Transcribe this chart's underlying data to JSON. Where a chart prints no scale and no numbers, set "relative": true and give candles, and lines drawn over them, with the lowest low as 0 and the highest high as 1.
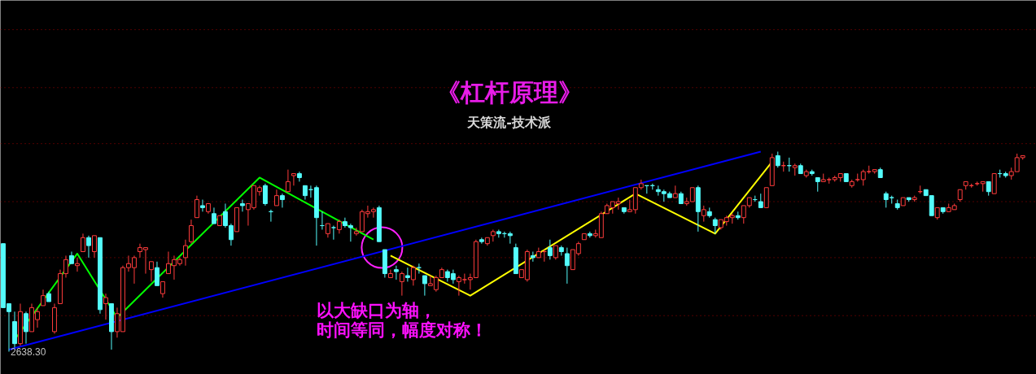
{
  "chart_data": {
    "type": "candlestick",
    "title": "《杠杆原理》",
    "subtitle": "天策流-技术派",
    "relative": true,
    "ref_lines": [
      {
        "axis": "y",
        "value": 0.18,
        "color": "#a00000",
        "line_style": "dotted"
      },
      {
        "axis": "y",
        "value": 0.47,
        "color": "#a00000",
        "line_style": "dotted"
      },
      {
        "axis": "y",
        "value": 0.75,
        "color": "#a00000",
        "line_style": "dotted"
      },
      {
        "axis": "y",
        "value": 1.04,
        "color": "#a00000",
        "line_style": "dotted"
      },
      {
        "axis": "y",
        "value": 1.32,
        "color": "#a00000",
        "line_style": "dotted"
      },
      {
        "axis": "y",
        "value": 1.61,
        "color": "#a00000",
        "line_style": "dotted"
      }
    ],
    "annotations": [
      "2638.30",
      "以大缺口为轴，",
      "时间等同，幅度对称！"
    ],
    "categories": [
      null,
      null,
      null,
      null,
      null,
      null,
      null,
      null,
      null,
      null,
      null,
      null,
      null,
      null,
      null,
      null,
      null,
      null,
      null,
      null,
      null,
      null,
      null,
      null,
      null,
      null,
      null,
      null,
      null,
      null,
      null,
      null,
      null,
      null,
      null,
      null,
      null,
      null,
      null,
      null,
      null,
      null,
      null,
      null,
      null,
      null,
      null,
      null,
      null,
      null,
      null,
      null,
      null,
      null,
      null,
      null,
      null,
      null,
      null,
      null,
      null,
      null,
      null,
      null,
      null,
      null,
      null,
      null,
      null,
      null,
      null,
      null,
      null,
      null,
      null,
      null,
      null,
      null,
      null,
      null,
      null,
      null,
      null,
      null,
      null,
      null,
      null,
      null,
      null,
      null,
      null,
      null,
      null,
      null,
      null,
      null,
      null,
      null,
      null,
      null,
      null,
      null,
      null,
      null,
      null,
      null,
      null,
      null,
      null,
      null,
      null,
      null,
      null,
      null,
      null,
      null,
      null,
      null,
      null,
      null,
      null,
      null,
      null,
      null,
      null,
      null,
      null,
      null,
      null,
      null,
      null,
      null,
      null,
      null,
      null,
      null,
      null,
      null,
      null,
      null,
      null,
      null,
      null,
      null,
      null,
      null,
      null,
      null,
      null,
      null,
      null,
      null,
      null,
      null,
      null,
      null,
      null,
      null,
      null,
      null,
      null,
      null,
      null,
      null,
      null,
      null,
      null,
      null,
      null,
      null,
      null,
      null,
      null,
      null,
      null,
      null,
      null,
      null,
      null,
      null
    ],
    "ohlc": [
      [
        0.54,
        0.54,
        0.22,
        0.22
      ],
      [
        0.24,
        0.24,
        0,
        0.2
      ],
      [
        0.15,
        0.2,
        0.02,
        0.04
      ],
      [
        0.04,
        0.24,
        0.03,
        0.2
      ],
      [
        0.19,
        0.2,
        0.04,
        0.1
      ],
      [
        0.1,
        0.24,
        0.1,
        0.22
      ],
      [
        0.16,
        0.22,
        0.12,
        0.2
      ],
      [
        0.23,
        0.31,
        0.23,
        0.28
      ],
      [
        0.29,
        0.3,
        0.25,
        0.25
      ],
      [
        0.1,
        0.24,
        0.09,
        0.22
      ],
      [
        0.24,
        0.41,
        0.24,
        0.39
      ],
      [
        0.39,
        0.48,
        0.37,
        0.46
      ],
      [
        0.48,
        0.5,
        0.44,
        0.44
      ],
      [
        0.43,
        0.47,
        0.4,
        0.44
      ],
      [
        0.5,
        0.59,
        0.5,
        0.57
      ],
      [
        0.57,
        0.58,
        0.47,
        0.53
      ],
      [
        0.5,
        0.58,
        0.47,
        0.58
      ],
      [
        0.57,
        0.57,
        0.19,
        0.21
      ],
      [
        0.24,
        0.29,
        0.16,
        0.27
      ],
      [
        0.24,
        0.24,
        0.01,
        0.1
      ],
      [
        0.1,
        0.22,
        0.07,
        0.19
      ],
      [
        0.1,
        0.43,
        0.1,
        0.42
      ],
      [
        0.42,
        0.48,
        0.4,
        0.44
      ],
      [
        0.42,
        0.48,
        0.34,
        0.47
      ],
      [
        0.5,
        0.54,
        0.47,
        0.52
      ],
      [
        0.51,
        0.52,
        0.39,
        0.52
      ],
      [
        0.41,
        0.45,
        0.35,
        0.45
      ],
      [
        0.42,
        0.45,
        0.33,
        0.33
      ],
      [
        0.29,
        0.35,
        0.27,
        0.35
      ],
      [
        0.39,
        0.5,
        0.39,
        0.44
      ],
      [
        0.43,
        0.48,
        0.36,
        0.46
      ],
      [
        0.44,
        0.47,
        0.43,
        0.46
      ],
      [
        0.47,
        0.56,
        0.43,
        0.53
      ],
      [
        0.55,
        0.66,
        0.54,
        0.63
      ],
      [
        0.67,
        0.78,
        0.67,
        0.76
      ],
      [
        0.73,
        0.76,
        0.7,
        0.72
      ],
      [
        0.7,
        0.74,
        0.69,
        0.74
      ],
      [
        0.69,
        0.72,
        0.64,
        0.64
      ],
      [
        0.63,
        0.68,
        0.63,
        0.68
      ],
      [
        0.7,
        0.74,
        0.62,
        0.63
      ],
      [
        0.63,
        0.64,
        0.53,
        0.56
      ],
      [
        0.6,
        0.72,
        0.6,
        0.72
      ],
      [
        0.74,
        0.76,
        0.7,
        0.73
      ],
      [
        0.71,
        0.74,
        0.63,
        0.74
      ],
      [
        0.72,
        0.83,
        0.71,
        0.83
      ],
      [
        0.8,
        0.83,
        0.78,
        0.82
      ],
      [
        0.83,
        0.84,
        0.73,
        0.74
      ],
      [
        0.7,
        0.71,
        0.65,
        0.7
      ],
      [
        0.73,
        0.81,
        0.73,
        0.78
      ],
      [
        0.78,
        0.79,
        0.72,
        0.76
      ],
      [
        0.8,
        0.91,
        0.8,
        0.85
      ],
      [
        0.88,
        0.89,
        0.83,
        0.89
      ],
      [
        0.89,
        0.9,
        0.85,
        0.87
      ],
      [
        0.83,
        0.83,
        0.76,
        0.78
      ],
      [
        0.81,
        0.83,
        0.77,
        0.81
      ],
      [
        0.82,
        0.83,
        0.53,
        0.67
      ],
      [
        0.63,
        0.7,
        0.61,
        0.63
      ],
      [
        0.59,
        0.64,
        0.57,
        0.64
      ],
      [
        0.62,
        0.63,
        0.56,
        0.62
      ],
      [
        0.61,
        0.66,
        0.59,
        0.65
      ],
      [
        0.65,
        0.67,
        0.62,
        0.63
      ],
      [
        0.63,
        0.64,
        0.55,
        0.62
      ],
      [
        0.59,
        0.62,
        0.58,
        0.6
      ],
      [
        0.6,
        0.71,
        0.6,
        0.7
      ],
      [
        0.69,
        0.73,
        0.67,
        0.7
      ],
      [
        0.7,
        0.72,
        0.67,
        0.71
      ],
      [
        0.72,
        0.73,
        0.55,
        0.55
      ],
      [
        0.51,
        0.51,
        0.37,
        0.39
      ],
      [
        0.37,
        0.41,
        0.37,
        0.39
      ],
      [
        0.41,
        0.43,
        0.36,
        0.4
      ],
      [
        0.35,
        0.4,
        0.28,
        0.39
      ],
      [
        0.38,
        0.42,
        0.35,
        0.37
      ],
      [
        0.36,
        0.43,
        0.33,
        0.42
      ],
      [
        0.42,
        0.44,
        0.39,
        0.42
      ],
      [
        0.38,
        0.38,
        0.28,
        0.34
      ],
      [
        0.33,
        0.38,
        0.33,
        0.34
      ],
      [
        0.31,
        0.38,
        0.3,
        0.37
      ],
      [
        0.37,
        0.42,
        0.37,
        0.41
      ],
      [
        0.4,
        0.41,
        0.35,
        0.37
      ],
      [
        0.39,
        0.41,
        0.34,
        0.36
      ],
      [
        0.35,
        0.38,
        0.28,
        0.37
      ],
      [
        0.36,
        0.39,
        0.34,
        0.36
      ],
      [
        0.36,
        0.39,
        0.31,
        0.37
      ],
      [
        0.37,
        0.56,
        0.37,
        0.55
      ],
      [
        0.56,
        0.57,
        0.54,
        0.55
      ],
      [
        0.54,
        0.57,
        0.53,
        0.57
      ],
      [
        0.58,
        0.61,
        0.55,
        0.6
      ],
      [
        0.6,
        0.61,
        0.57,
        0.59
      ],
      [
        0.59,
        0.6,
        0.57,
        0.59
      ],
      [
        0.59,
        0.6,
        0.54,
        0.58
      ],
      [
        0.52,
        0.54,
        0.39,
        0.39
      ],
      [
        0.37,
        0.41,
        0.37,
        0.41
      ],
      [
        0.36,
        0.51,
        0.35,
        0.5
      ],
      [
        0.48,
        0.5,
        0.45,
        0.47
      ],
      [
        0.47,
        0.52,
        0.47,
        0.5
      ],
      [
        0.5,
        0.51,
        0.45,
        0.5
      ],
      [
        0.52,
        0.56,
        0.46,
        0.48
      ],
      [
        0.47,
        0.53,
        0.46,
        0.53
      ],
      [
        0.52,
        0.53,
        0.48,
        0.5
      ],
      [
        0.49,
        0.52,
        0.34,
        0.43
      ],
      [
        0.41,
        0.51,
        0.41,
        0.51
      ],
      [
        0.49,
        0.55,
        0.48,
        0.54
      ],
      [
        0.56,
        0.59,
        0.56,
        0.59
      ],
      [
        0.59,
        0.6,
        0.57,
        0.58
      ],
      [
        0.58,
        0.61,
        0.57,
        0.59
      ],
      [
        0.57,
        0.7,
        0.57,
        0.69
      ],
      [
        0.69,
        0.74,
        0.69,
        0.73
      ],
      [
        0.72,
        0.75,
        0.69,
        0.75
      ],
      [
        0.74,
        0.77,
        0.71,
        0.75
      ],
      [
        0.72,
        0.72,
        0.69,
        0.7
      ],
      [
        0.7,
        0.76,
        0.7,
        0.71
      ],
      [
        0.71,
        0.82,
        0.69,
        0.82
      ],
      [
        0.82,
        0.86,
        0.81,
        0.84
      ],
      [
        0.83,
        0.83,
        0.79,
        0.83
      ],
      [
        0.83,
        0.84,
        0.81,
        0.83
      ],
      [
        0.81,
        0.83,
        0.78,
        0.8
      ],
      [
        0.8,
        0.81,
        0.75,
        0.79
      ],
      [
        0.79,
        0.8,
        0.77,
        0.77
      ],
      [
        0.77,
        0.83,
        0.77,
        0.79
      ],
      [
        0.79,
        0.8,
        0.74,
        0.74
      ],
      [
        0.74,
        0.77,
        0.73,
        0.75
      ],
      [
        0.75,
        0.82,
        0.75,
        0.82
      ],
      [
        0.82,
        0.83,
        0.6,
        0.7
      ],
      [
        0.68,
        0.73,
        0.65,
        0.71
      ],
      [
        0.7,
        0.72,
        0.67,
        0.68
      ],
      [
        0.66,
        0.67,
        0.59,
        0.63
      ],
      [
        0.62,
        0.66,
        0.61,
        0.66
      ],
      [
        0.65,
        0.68,
        0.63,
        0.67
      ],
      [
        0.67,
        0.69,
        0.64,
        0.68
      ],
      [
        0.68,
        0.7,
        0.66,
        0.67
      ],
      [
        0.67,
        0.73,
        0.64,
        0.73
      ],
      [
        0.73,
        0.77,
        0.72,
        0.77
      ],
      [
        0.76,
        0.78,
        0.75,
        0.76
      ],
      [
        0.75,
        0.79,
        0.72,
        0.72
      ],
      [
        0.72,
        0.82,
        0.72,
        0.82
      ],
      [
        0.83,
        0.99,
        0.83,
        0.97
      ],
      [
        0.98,
        1,
        0.92,
        0.93
      ],
      [
        0.93,
        0.95,
        0.9,
        0.93
      ],
      [
        0.93,
        0.97,
        0.9,
        0.93
      ],
      [
        0.92,
        0.94,
        0.88,
        0.93
      ],
      [
        0.93,
        0.94,
        0.89,
        0.89
      ],
      [
        0.88,
        0.91,
        0.87,
        0.9
      ],
      [
        0.9,
        0.91,
        0.88,
        0.89
      ],
      [
        0.87,
        0.87,
        0.8,
        0.85
      ],
      [
        0.85,
        0.89,
        0.85,
        0.86
      ],
      [
        0.86,
        0.87,
        0.84,
        0.86
      ],
      [
        0.86,
        0.88,
        0.85,
        0.87
      ],
      [
        0.87,
        0.89,
        0.85,
        0.89
      ],
      [
        0.89,
        0.89,
        0.85,
        0.85
      ],
      [
        0.83,
        0.86,
        0.82,
        0.85
      ],
      [
        0.86,
        0.89,
        0.85,
        0.86
      ],
      [
        0.86,
        0.91,
        0.83,
        0.9
      ],
      [
        0.9,
        0.93,
        0.89,
        0.9
      ],
      [
        0.9,
        0.91,
        0.89,
        0.91
      ],
      [
        0.91,
        0.92,
        0.87,
        0.87
      ],
      [
        0.79,
        0.8,
        0.72,
        0.76
      ],
      [
        0.77,
        0.78,
        0.74,
        0.77
      ],
      [
        0.74,
        0.76,
        0.71,
        0.72
      ],
      [
        0.73,
        0.77,
        0.73,
        0.77
      ],
      [
        0.77,
        0.77,
        0.75,
        0.76
      ],
      [
        0.76,
        0.78,
        0.75,
        0.77
      ],
      [
        0.8,
        0.83,
        0.79,
        0.8
      ],
      [
        0.81,
        0.81,
        0.78,
        0.78
      ],
      [
        0.78,
        0.78,
        0.68,
        0.68
      ],
      [
        0.67,
        0.72,
        0.66,
        0.72
      ],
      [
        0.72,
        0.72,
        0.69,
        0.7
      ],
      [
        0.7,
        0.74,
        0.7,
        0.72
      ],
      [
        0.71,
        0.74,
        0.71,
        0.73
      ],
      [
        0.76,
        0.81,
        0.75,
        0.81
      ],
      [
        0.83,
        0.85,
        0.81,
        0.85
      ],
      [
        0.83,
        0.84,
        0.82,
        0.83
      ],
      [
        0.84,
        0.85,
        0.83,
        0.84
      ],
      [
        0.84,
        0.85,
        0.8,
        0.85
      ],
      [
        0.85,
        0.85,
        0.78,
        0.8
      ],
      [
        0.79,
        0.89,
        0.79,
        0.89
      ],
      [
        0.89,
        0.91,
        0.87,
        0.89
      ],
      [
        0.89,
        0.9,
        0.87,
        0.88
      ],
      [
        0.88,
        0.92,
        0.86,
        0.9
      ],
      [
        0.9,
        0.99,
        0.9,
        0.97
      ],
      [
        0.97,
        0.98,
        0.96,
        0.98
      ]
    ],
    "colors": [
      "#54fcfc",
      "#54fcfc",
      "#54fcfc",
      "#ff3c3c",
      "#54fcfc",
      "#ff3c3c",
      "#ff3c3c",
      "#ff3c3c",
      "#54fcfc",
      "#ff3c3c",
      "#ff3c3c",
      "#ff3c3c",
      "#54fcfc",
      "#ff3c3c",
      "#ff3c3c",
      "#54fcfc",
      "#ff3c3c",
      "#54fcfc",
      "#ff3c3c",
      "#54fcfc",
      "#ff3c3c",
      "#ff3c3c",
      "#ff3c3c",
      "#ff3c3c",
      "#ff3c3c",
      "#ff3c3c",
      "#ff3c3c",
      "#54fcfc",
      "#ff3c3c",
      "#ff3c3c",
      "#ff3c3c",
      "#ff3c3c",
      "#ff3c3c",
      "#ff3c3c",
      "#ff3c3c",
      "#54fcfc",
      "#ff3c3c",
      "#54fcfc",
      "#ff3c3c",
      "#54fcfc",
      "#54fcfc",
      "#ff3c3c",
      "#54fcfc",
      "#ff3c3c",
      "#ff3c3c",
      "#ff3c3c",
      "#54fcfc",
      "#54fcfc",
      "#ff3c3c",
      "#54fcfc",
      "#ff3c3c",
      "#ff3c3c",
      "#54fcfc",
      "#54fcfc",
      "#54fcfc",
      "#54fcfc",
      "#54fcfc",
      "#ff3c3c",
      "#54fcfc",
      "#ff3c3c",
      "#54fcfc",
      "#54fcfc",
      "#ff3c3c",
      "#ff3c3c",
      "#ff3c3c",
      "#ff3c3c",
      "#54fcfc",
      "#54fcfc",
      "#ff3c3c",
      "#54fcfc",
      "#ff3c3c",
      "#54fcfc",
      "#ff3c3c",
      "#54fcfc",
      "#54fcfc",
      "#ff3c3c",
      "#ff3c3c",
      "#ff3c3c",
      "#54fcfc",
      "#54fcfc",
      "#ff3c3c",
      "#ff3c3c",
      "#ff3c3c",
      "#ff3c3c",
      "#54fcfc",
      "#ff3c3c",
      "#ff3c3c",
      "#54fcfc",
      "#54fcfc",
      "#54fcfc",
      "#54fcfc",
      "#ff3c3c",
      "#ff3c3c",
      "#54fcfc",
      "#ff3c3c",
      "#ff3c3c",
      "#54fcfc",
      "#ff3c3c",
      "#54fcfc",
      "#54fcfc",
      "#ff3c3c",
      "#ff3c3c",
      "#ff3c3c",
      "#54fcfc",
      "#ff3c3c",
      "#ff3c3c",
      "#ff3c3c",
      "#ff3c3c",
      "#ff3c3c",
      "#54fcfc",
      "#ff3c3c",
      "#ff3c3c",
      "#ff3c3c",
      "#54fcfc",
      "#54fcfc",
      "#54fcfc",
      "#54fcfc",
      "#54fcfc",
      "#ff3c3c",
      "#54fcfc",
      "#ff3c3c",
      "#ff3c3c",
      "#54fcfc",
      "#ff3c3c",
      "#54fcfc",
      "#54fcfc",
      "#ff3c3c",
      "#ff3c3c",
      "#ff3c3c",
      "#54fcfc",
      "#ff3c3c",
      "#ff3c3c",
      "#54fcfc",
      "#54fcfc",
      "#ff3c3c",
      "#ff3c3c",
      "#54fcfc",
      "#ff3c3c",
      "#54fcfc",
      "#ff3c3c",
      "#54fcfc",
      "#ff3c3c",
      "#54fcfc",
      "#54fcfc",
      "#ff3c3c",
      "#ff3c3c",
      "#ff3c3c",
      "#ff3c3c",
      "#54fcfc",
      "#ff3c3c",
      "#ff3c3c",
      "#ff3c3c",
      "#ff3c3c",
      "#ff3c3c",
      "#54fcfc",
      "#54fcfc",
      "#54fcfc",
      "#54fcfc",
      "#ff3c3c",
      "#54fcfc",
      "#ff3c3c",
      "#ff3c3c",
      "#54fcfc",
      "#54fcfc",
      "#ff3c3c",
      "#54fcfc",
      "#ff3c3c",
      "#ff3c3c",
      "#ff3c3c",
      "#ff3c3c",
      "#ff3c3c",
      "#ff3c3c",
      "#ff3c3c",
      "#54fcfc",
      "#ff3c3c",
      "#54fcfc",
      "#54fcfc",
      "#ff3c3c",
      "#ff3c3c",
      "#ff3c3c"
    ],
    "series": [
      {
        "type": "line",
        "color": "#00ff00",
        "values": [
          null,
          null,
          0.06,
          null,
          null,
          null,
          null,
          null,
          null,
          null,
          null,
          null,
          null,
          0.49,
          null,
          null,
          null,
          null,
          null,
          null,
          0.17,
          null,
          null,
          null,
          null,
          null,
          null,
          null,
          null,
          null,
          null,
          null,
          null,
          null,
          null,
          null,
          null,
          null,
          null,
          null,
          null,
          null,
          null,
          null,
          null,
          0.87,
          null,
          null,
          null,
          null,
          null,
          null,
          null,
          null,
          null,
          null,
          null,
          null,
          null,
          null,
          null,
          null,
          null,
          null,
          null,
          0.56,
          null,
          null,
          null,
          null,
          null,
          null,
          null,
          null,
          null,
          null,
          null,
          null,
          null,
          null,
          null,
          null,
          null,
          null,
          null,
          null,
          null,
          null,
          null,
          null,
          null,
          null,
          null,
          null,
          null,
          null,
          null,
          null,
          null,
          null,
          null,
          null,
          null,
          null,
          null,
          null,
          null,
          null,
          null,
          null,
          null,
          null,
          null,
          null,
          null,
          null,
          null,
          null,
          null,
          null,
          null,
          null,
          null,
          null,
          null,
          null,
          null,
          null,
          null,
          null,
          null,
          null,
          null,
          null,
          null,
          null,
          null,
          null,
          null,
          null,
          null,
          null,
          null,
          null,
          null,
          null,
          null,
          null,
          null,
          null,
          null,
          null,
          null,
          null,
          null,
          null,
          null,
          null,
          null,
          null,
          null,
          null,
          null,
          null,
          null,
          null,
          null,
          null,
          null,
          null,
          null,
          null,
          null,
          null,
          null,
          null,
          null,
          null,
          null,
          null
        ]
      },
      {
        "type": "line",
        "color": "#ffff00",
        "values": [
          null,
          null,
          null,
          null,
          null,
          null,
          null,
          null,
          null,
          null,
          null,
          null,
          null,
          null,
          null,
          null,
          null,
          null,
          null,
          null,
          null,
          null,
          null,
          null,
          null,
          null,
          null,
          null,
          null,
          null,
          null,
          null,
          null,
          null,
          null,
          null,
          null,
          null,
          null,
          null,
          null,
          null,
          null,
          null,
          null,
          null,
          null,
          null,
          null,
          null,
          null,
          null,
          null,
          null,
          null,
          null,
          null,
          null,
          null,
          null,
          null,
          null,
          null,
          null,
          null,
          null,
          null,
          null,
          0.48,
          null,
          null,
          null,
          null,
          null,
          null,
          null,
          null,
          null,
          null,
          null,
          null,
          null,
          0.28,
          null,
          null,
          null,
          null,
          null,
          null,
          null,
          null,
          null,
          null,
          null,
          null,
          null,
          null,
          null,
          null,
          null,
          null,
          null,
          null,
          null,
          null,
          null,
          null,
          null,
          null,
          null,
          null,
          0.79,
          null,
          null,
          null,
          null,
          null,
          null,
          null,
          null,
          null,
          null,
          null,
          null,
          null,
          0.59,
          null,
          null,
          null,
          null,
          null,
          null,
          null,
          null,
          null,
          0.95,
          null,
          null,
          null,
          null,
          null,
          null,
          null,
          null,
          null,
          null,
          null,
          null,
          null,
          null,
          null,
          null,
          null,
          null,
          null,
          null,
          null,
          null,
          null,
          null,
          null,
          null,
          null,
          null,
          null,
          null,
          null,
          null,
          null,
          null,
          null,
          null,
          null,
          null,
          null,
          null,
          null,
          null,
          null,
          null
        ]
      },
      {
        "type": "line",
        "color": "#0000ff",
        "values": [
          null,
          0.01,
          null,
          null,
          null,
          null,
          null,
          null,
          null,
          null,
          null,
          null,
          null,
          null,
          null,
          null,
          null,
          null,
          null,
          null,
          null,
          null,
          null,
          null,
          null,
          null,
          null,
          null,
          null,
          null,
          null,
          null,
          null,
          null,
          null,
          null,
          null,
          null,
          null,
          null,
          null,
          null,
          null,
          null,
          null,
          null,
          null,
          null,
          null,
          null,
          null,
          null,
          null,
          null,
          null,
          null,
          null,
          null,
          null,
          null,
          null,
          null,
          null,
          null,
          null,
          null,
          null,
          null,
          null,
          null,
          null,
          null,
          null,
          null,
          null,
          null,
          null,
          null,
          null,
          null,
          null,
          null,
          null,
          null,
          null,
          null,
          null,
          null,
          null,
          null,
          null,
          null,
          null,
          null,
          null,
          null,
          null,
          null,
          null,
          null,
          null,
          null,
          null,
          null,
          null,
          null,
          null,
          null,
          null,
          null,
          null,
          null,
          null,
          null,
          null,
          null,
          null,
          null,
          null,
          null,
          null,
          null,
          null,
          null,
          null,
          null,
          null,
          null,
          null,
          null,
          null,
          null,
          null,
          1.0,
          null,
          null,
          null,
          null,
          null,
          null,
          null,
          null,
          null,
          null,
          null,
          null,
          null,
          null,
          null,
          null,
          null,
          null,
          null,
          null,
          null,
          null,
          null,
          null,
          null,
          null,
          null,
          null,
          null,
          null,
          null,
          null,
          null,
          null,
          null,
          null,
          null,
          null,
          null,
          null,
          null,
          null,
          null,
          null,
          null,
          null
        ]
      }
    ]
  }
}
